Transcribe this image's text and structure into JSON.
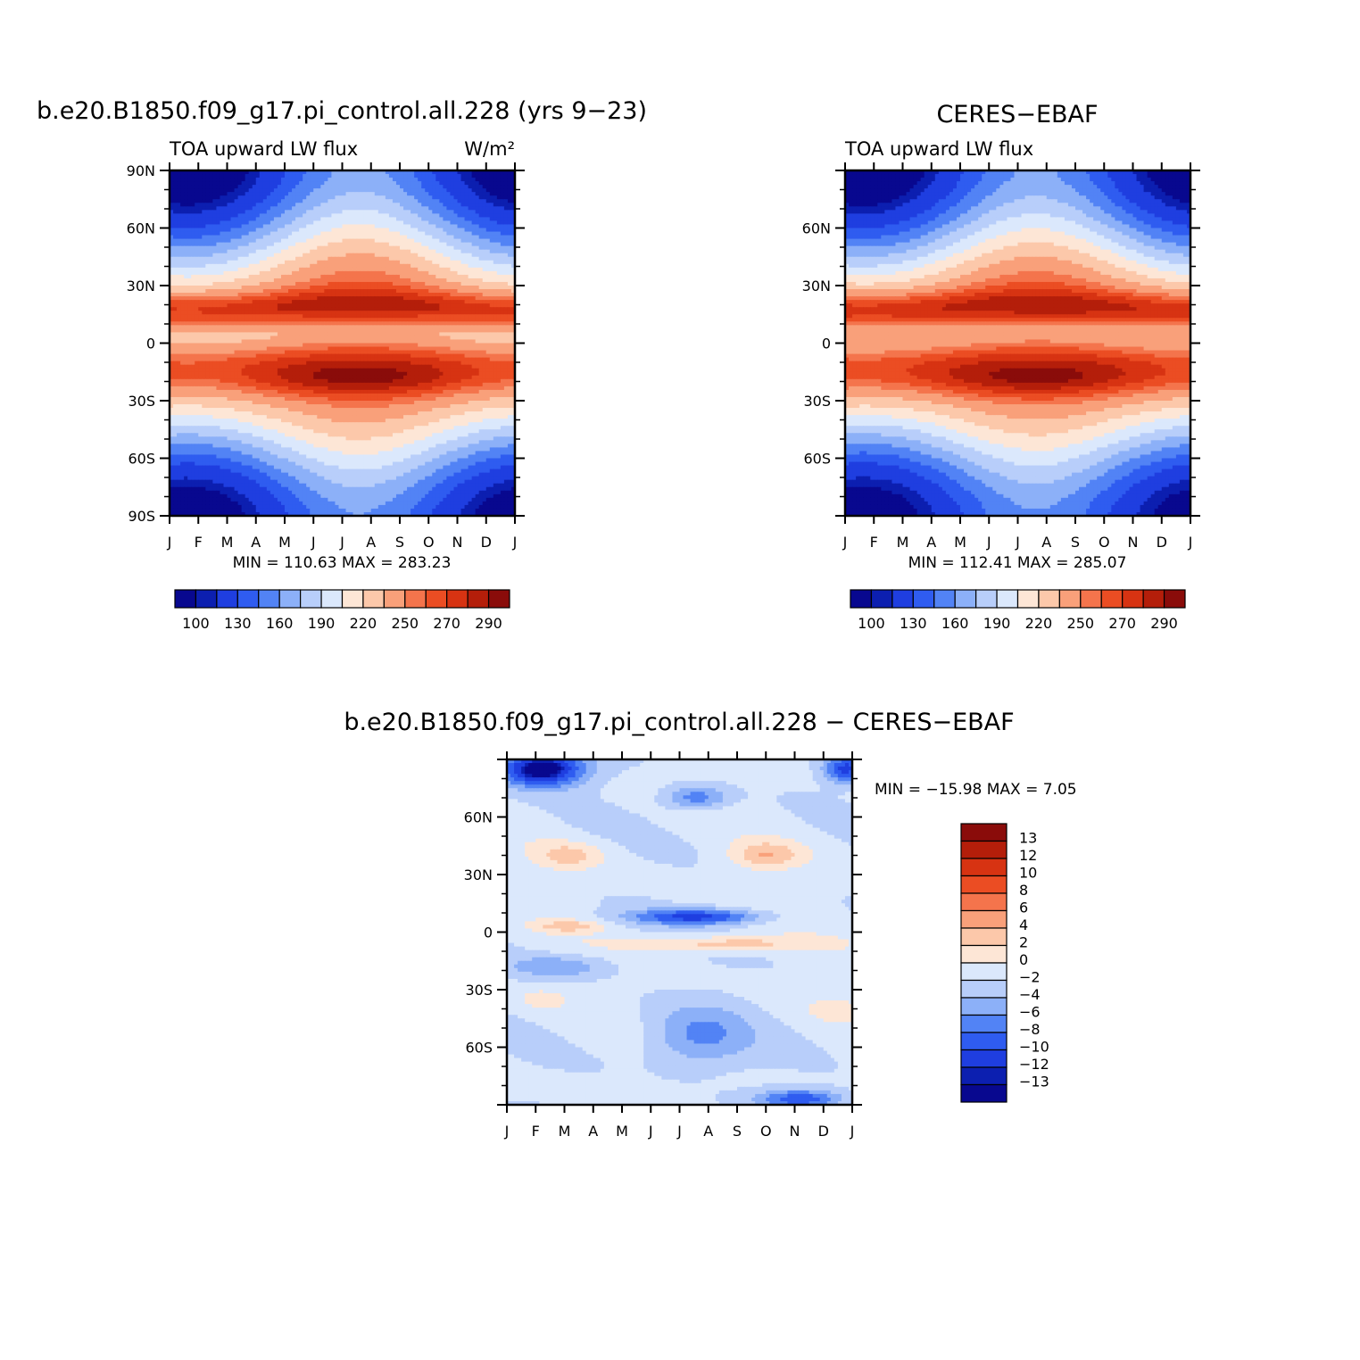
{
  "palette": [
    "#08088f",
    "#0c1fb0",
    "#1f3ee0",
    "#2f5cf0",
    "#5283f5",
    "#8cb0f8",
    "#b8cefa",
    "#dbe8fc",
    "#fde6d6",
    "#fcc8aa",
    "#f9a07a",
    "#f4744c",
    "#eb4d23",
    "#d73312",
    "#b41e0a",
    "#8a0c0a"
  ],
  "diff_palette": [
    "#08088f",
    "#0c1fb0",
    "#1f3ee0",
    "#2f5cf0",
    "#5283f5",
    "#8cb0f8",
    "#b8cefa",
    "#dbe8fc",
    "#fde6d6",
    "#fcc8aa",
    "#f9a07a",
    "#f4744c",
    "#eb4d23",
    "#d73312",
    "#b41e0a",
    "#8a0c0a"
  ],
  "chart_data": [
    {
      "type": "heatmap",
      "title": "b.e20.B1850.f09_g17.pi_control.all.228 (yrs 9−23)",
      "left_subtitle": "TOA upward LW flux",
      "right_subtitle": "W/m²",
      "stats": "MIN = 110.63 MAX = 283.23",
      "x_ticks": [
        "J",
        "F",
        "M",
        "A",
        "M",
        "J",
        "J",
        "A",
        "S",
        "O",
        "N",
        "D",
        "J"
      ],
      "y_ticks": [
        "90N",
        "60N",
        "30N",
        "0",
        "30S",
        "60S",
        "90S"
      ],
      "colorbar_labels": [
        "100",
        "130",
        "160",
        "190",
        "220",
        "250",
        "270",
        "290"
      ],
      "levels": [
        90,
        100,
        110,
        130,
        145,
        160,
        175,
        190,
        205,
        220,
        235,
        250,
        260,
        270,
        280,
        290
      ]
    },
    {
      "type": "heatmap",
      "title": "CERES−EBAF",
      "left_subtitle": "TOA upward LW flux",
      "right_subtitle": "",
      "stats": "MIN = 112.41 MAX = 285.07",
      "x_ticks": [
        "J",
        "F",
        "M",
        "A",
        "M",
        "J",
        "J",
        "A",
        "S",
        "O",
        "N",
        "D",
        "J"
      ],
      "y_ticks": [
        "",
        "60N",
        "30N",
        "0",
        "30S",
        "60S",
        ""
      ],
      "colorbar_labels": [
        "100",
        "130",
        "160",
        "190",
        "220",
        "250",
        "270",
        "290"
      ],
      "levels": [
        90,
        100,
        110,
        130,
        145,
        160,
        175,
        190,
        205,
        220,
        235,
        250,
        260,
        270,
        280,
        290
      ]
    },
    {
      "type": "heatmap",
      "title": "b.e20.B1850.f09_g17.pi_control.all.228 − CERES−EBAF",
      "stats": "MIN = −15.98 MAX =    7.05",
      "x_ticks": [
        "J",
        "F",
        "M",
        "A",
        "M",
        "J",
        "J",
        "A",
        "S",
        "O",
        "N",
        "D",
        "J"
      ],
      "y_ticks": [
        "",
        "60N",
        "30N",
        "0",
        "30S",
        "60S",
        ""
      ],
      "colorbar_labels": [
        "13",
        "12",
        "10",
        "8",
        "6",
        "4",
        "2",
        "0",
        "−2",
        "−4",
        "−6",
        "−8",
        "−10",
        "−12",
        "−13"
      ],
      "levels": [
        -14,
        -13,
        -12,
        -10,
        -8,
        -6,
        -4,
        -2,
        0,
        2,
        4,
        6,
        8,
        10,
        12,
        13
      ]
    }
  ]
}
